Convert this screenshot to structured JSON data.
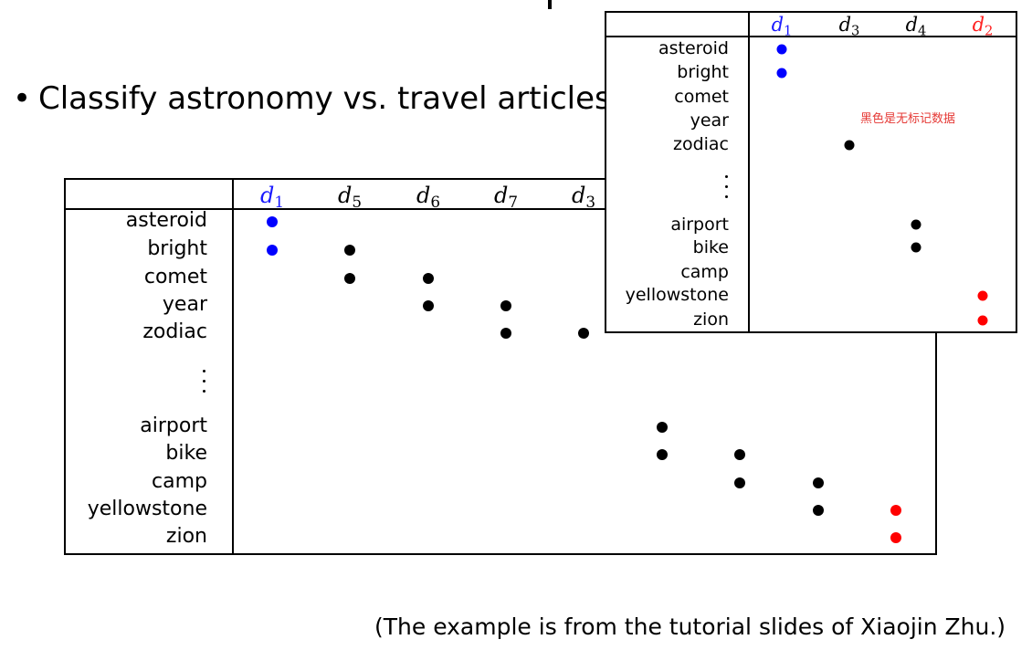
{
  "slide": {
    "bullet": "Classify astronomy vs. travel articles",
    "footer": "(The example is from the tutorial slides of Xiaojin Zhu.)"
  },
  "main_table": {
    "columns": [
      {
        "letter": "d",
        "sub": "1",
        "color": "#1a1aff"
      },
      {
        "letter": "d",
        "sub": "5",
        "color": "#000000"
      },
      {
        "letter": "d",
        "sub": "6",
        "color": "#000000"
      },
      {
        "letter": "d",
        "sub": "7",
        "color": "#000000"
      },
      {
        "letter": "d",
        "sub": "3",
        "color": "#000000"
      }
    ],
    "rows": [
      "asteroid",
      "bright",
      "comet",
      "year",
      "zodiac",
      "airport",
      "bike",
      "camp",
      "yellowstone",
      "zion"
    ],
    "marks": [
      {
        "row": "asteroid",
        "doc": "d1",
        "color": "#0000ff"
      },
      {
        "row": "bright",
        "doc": "d1",
        "color": "#0000ff"
      },
      {
        "row": "bright",
        "doc": "d5",
        "color": "#000000"
      },
      {
        "row": "comet",
        "doc": "d5",
        "color": "#000000"
      },
      {
        "row": "comet",
        "doc": "d6",
        "color": "#000000"
      },
      {
        "row": "year",
        "doc": "d6",
        "color": "#000000"
      },
      {
        "row": "year",
        "doc": "d7",
        "color": "#000000"
      },
      {
        "row": "zodiac",
        "doc": "d7",
        "color": "#000000"
      },
      {
        "row": "zodiac",
        "doc": "d3",
        "color": "#000000"
      },
      {
        "row": "airport",
        "doc": "d4",
        "color": "#000000"
      },
      {
        "row": "bike",
        "doc": "d4",
        "color": "#000000"
      },
      {
        "row": "bike",
        "doc": "d8",
        "color": "#000000"
      },
      {
        "row": "camp",
        "doc": "d8",
        "color": "#000000"
      },
      {
        "row": "camp",
        "doc": "d9",
        "color": "#000000"
      },
      {
        "row": "yellowstone",
        "doc": "d9",
        "color": "#000000"
      },
      {
        "row": "yellowstone",
        "doc": "d2",
        "color": "#ff0000"
      },
      {
        "row": "zion",
        "doc": "d2",
        "color": "#ff0000"
      }
    ]
  },
  "inset_table": {
    "columns": [
      {
        "letter": "d",
        "sub": "1",
        "color": "#1a1aff"
      },
      {
        "letter": "d",
        "sub": "3",
        "color": "#000000"
      },
      {
        "letter": "d",
        "sub": "4",
        "color": "#000000"
      },
      {
        "letter": "d",
        "sub": "2",
        "color": "#ff2020"
      }
    ],
    "rows": [
      "asteroid",
      "bright",
      "comet",
      "year",
      "zodiac",
      "airport",
      "bike",
      "camp",
      "yellowstone",
      "zion"
    ],
    "note": "黑色是无标记数据",
    "marks": [
      {
        "row": "asteroid",
        "doc": "d1",
        "color": "#0000ff"
      },
      {
        "row": "bright",
        "doc": "d1",
        "color": "#0000ff"
      },
      {
        "row": "zodiac",
        "doc": "d3",
        "color": "#000000"
      },
      {
        "row": "airport",
        "doc": "d4",
        "color": "#000000"
      },
      {
        "row": "bike",
        "doc": "d4",
        "color": "#000000"
      },
      {
        "row": "yellowstone",
        "doc": "d2",
        "color": "#ff0000"
      },
      {
        "row": "zion",
        "doc": "d2",
        "color": "#ff0000"
      }
    ]
  }
}
